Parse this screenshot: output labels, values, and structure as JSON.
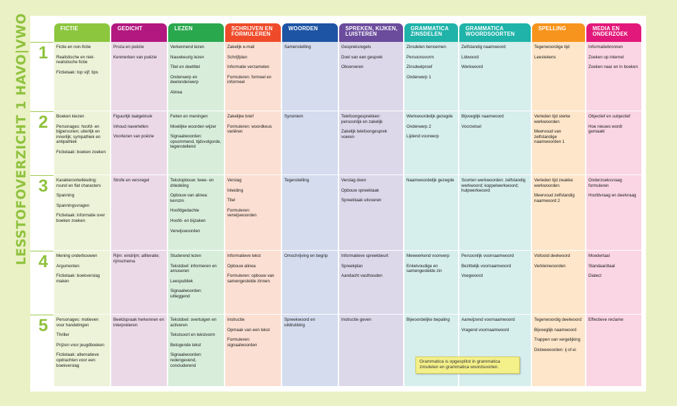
{
  "title": "LESSTOFOVERZICHT 1 HAVO|VWO",
  "columns": [
    {
      "label": "FICTIE",
      "color": "#8cc63f",
      "bg": "#edf3d8"
    },
    {
      "label": "GEDICHT",
      "color": "#b2187f",
      "bg": "#ecd9e8"
    },
    {
      "label": "LEZEN",
      "color": "#2aa84e",
      "bg": "#d8eedb"
    },
    {
      "label": "SCHRIJVEN EN FORMULEREN",
      "color": "#ef4b2a",
      "bg": "#fbdfd2"
    },
    {
      "label": "WOORDEN",
      "color": "#1d54a3",
      "bg": "#d4dcee"
    },
    {
      "label": "SPREKEN, KIJKEN, LUISTEREN",
      "color": "#6b4b9c",
      "bg": "#ddd7ea"
    },
    {
      "label": "GRAMMATICA ZINSDELEN",
      "color": "#1fb3a9",
      "bg": "#d6eeec"
    },
    {
      "label": "GRAMMATICA WOORDSOORTEN",
      "color": "#1fb3a9",
      "bg": "#d6eeec"
    },
    {
      "label": "SPELLING",
      "color": "#f7941d",
      "bg": "#fde6c9"
    },
    {
      "label": "MEDIA EN ONDERZOEK",
      "color": "#e2197a",
      "bg": "#fad5e4"
    }
  ],
  "rows": [
    {
      "number": "1",
      "cells": [
        [
          "Fictie en non-fictie",
          "Realistische en niet-realistische fictie",
          "Fictietaak: top vijf; tips"
        ],
        [
          "Proza en poëzie",
          "Kenmerken van poëzie"
        ],
        [
          "Verkennend lezen",
          "Nauwkeurig lezen",
          "Titel en deeltitel",
          "Onderwerp en deelonderwerp",
          "Alinea"
        ],
        [
          "Zakelijk e-mail",
          "Schrijfplan",
          "Informatie verzamelen",
          "Formuleren: formeel en informeel"
        ],
        [
          "Samenstelling"
        ],
        [
          "Gespreksregels",
          "Doel van een gesprek",
          "Observeren"
        ],
        [
          "Zinsdelen benoemen",
          "Persoonsvorm",
          "Zinsdeelproef",
          "Onderwerp 1"
        ],
        [
          "Zelfstandig naamwoord",
          "Lidwoord",
          "Werkwoord"
        ],
        [
          "Tegenwoordige tijd",
          "Leestekens"
        ],
        [
          "Informatiebronnen",
          "Zoeken op internet",
          "Zoeken naar en in boeken"
        ]
      ]
    },
    {
      "number": "2",
      "cells": [
        [
          "Boeken kiezen",
          "Personages: hoofd- en bijpersonen; uiterlijk en innerlijk; sympathiek en antipathiek",
          "Fictietaak: boeken zoeken"
        ],
        [
          "Figuurlijk taalgebruik",
          "Inhoud navertellen",
          "Voorlezen van poëzie"
        ],
        [
          "Feiten en meningen",
          "Moeilijke woorden wijzer",
          "Signaalwoorden: opsommend, tijdsvolgorde, tegenstellend"
        ],
        [
          "Zakelijke brief",
          "Formuleren: woordkeus variëren"
        ],
        [
          "Synoniem"
        ],
        [
          "Telefoongesprekken: persoonlijk en zakelijk",
          "Zakelijk telefoongesprek voeren"
        ],
        [
          "Werkwoordelijk gezegde",
          "Onderwerp 2",
          "Lijdend voorwerp"
        ],
        [
          "Bijvoeglijk naamwoord",
          "Voorzetsel"
        ],
        [
          "Verleden tijd sterke werkwoorden",
          "Meervoud van zelfstandige naamwoorden 1"
        ],
        [
          "Objectief en subjectief",
          "Hoe nieuws wordt gemaakt"
        ]
      ]
    },
    {
      "number": "3",
      "cells": [
        [
          "Karakterontwikkeling: round en flat characters",
          "Spanning",
          "Spanningsvragen",
          "Fictietaak: informatie over boeken zoeken"
        ],
        [
          "Strofe en versregel"
        ],
        [
          "Tekstopbouw: twee- en drledeling",
          "Opbouw van alinea: kernzin",
          "Hoofdgedachte",
          "Hoofd- en bijzaken",
          "Verwijswoorden"
        ],
        [
          "Verslag",
          "Inleiding",
          "Titel",
          "Formuleren: verwijswoorden"
        ],
        [
          "Tegenstelling"
        ],
        [
          "Verslag doen",
          "Opbouw spreektaak",
          "Spreektaak uitvoeren"
        ],
        [
          "Naamwoordelijk gezegde"
        ],
        [
          "Soorten werkwoorden: zelfstandig werkwoord; koppelwerkwoord; hulpwerkwoord"
        ],
        [
          "Verleden tijd zwakke werkwoorden",
          "Meervoud zelfstandig naamwoord 2"
        ],
        [
          "Onderzoeksvraag formuleren",
          "Hoofdvraag en deelvraag"
        ]
      ]
    },
    {
      "number": "4",
      "cells": [
        [
          "Mening onderbouwen",
          "Argumenten",
          "Fictietaak: boekverslag maken"
        ],
        [
          "Rijm: eindrijm; alliteratie; rijmschema"
        ],
        [
          "Studerend lezen",
          "Tekstdoel: informeren en amuseren",
          "Leespubliek",
          "Signaalwoorden: uitleggend"
        ],
        [
          "Informatieve tekst",
          "Opbouw alinea",
          "Formuleren: opbouw van samengestelde zinnen"
        ],
        [
          "Omschrijving en begrip"
        ],
        [
          "Informatieve spreekbeurt",
          "Spreekplan",
          "Aandacht vasthouden"
        ],
        [
          "Meewerkend voorwerp",
          "Enkelvoudige en samengestelde zin"
        ],
        [
          "Persoonlijk voornaamwoord",
          "Bezittelijk voornaamwoord",
          "Voegwoord"
        ],
        [
          "Voltooid deelwoord",
          "Verkleinwoorden"
        ],
        [
          "Moedertaal",
          "Standaardtaal",
          "Dialect"
        ]
      ]
    },
    {
      "number": "5",
      "cells": [
        [
          "Personages: motieven voor handelingen",
          "Thriller",
          "Prijzen voor jeugdboeken",
          "Fictietaak: alternatieve opdrachten voor een boekverslag"
        ],
        [
          "Beeldspraak herkennen en interpreteren"
        ],
        [
          "Tekstdoel: overtuigen en activeren",
          "Tekstsoort en tekstvorm",
          "Betogende tekst",
          "Signaalwoorden: redengevend, concluderend"
        ],
        [
          "Instructie",
          "Opmaak van een tekst",
          "Formuleren: signaalwoorden"
        ],
        [
          "Spreekwoord en uitdrukking"
        ],
        [
          "Instructie geven"
        ],
        [
          "Bijwoordelijke bepaling"
        ],
        [
          "Aanwijzend voornaamwoord",
          "Vragend voornaamwoord"
        ],
        [
          "Tegenwoordig deelwoord",
          "Bijvoeglijk naamwoord",
          "Trappen van vergelijking",
          "Dicteewoorden: ij of ei"
        ],
        [
          "Effectieve reclame"
        ]
      ]
    }
  ],
  "note": "Grammatica is opgesplitst in grammatica zinsdelen en grammatica woordsoorten."
}
